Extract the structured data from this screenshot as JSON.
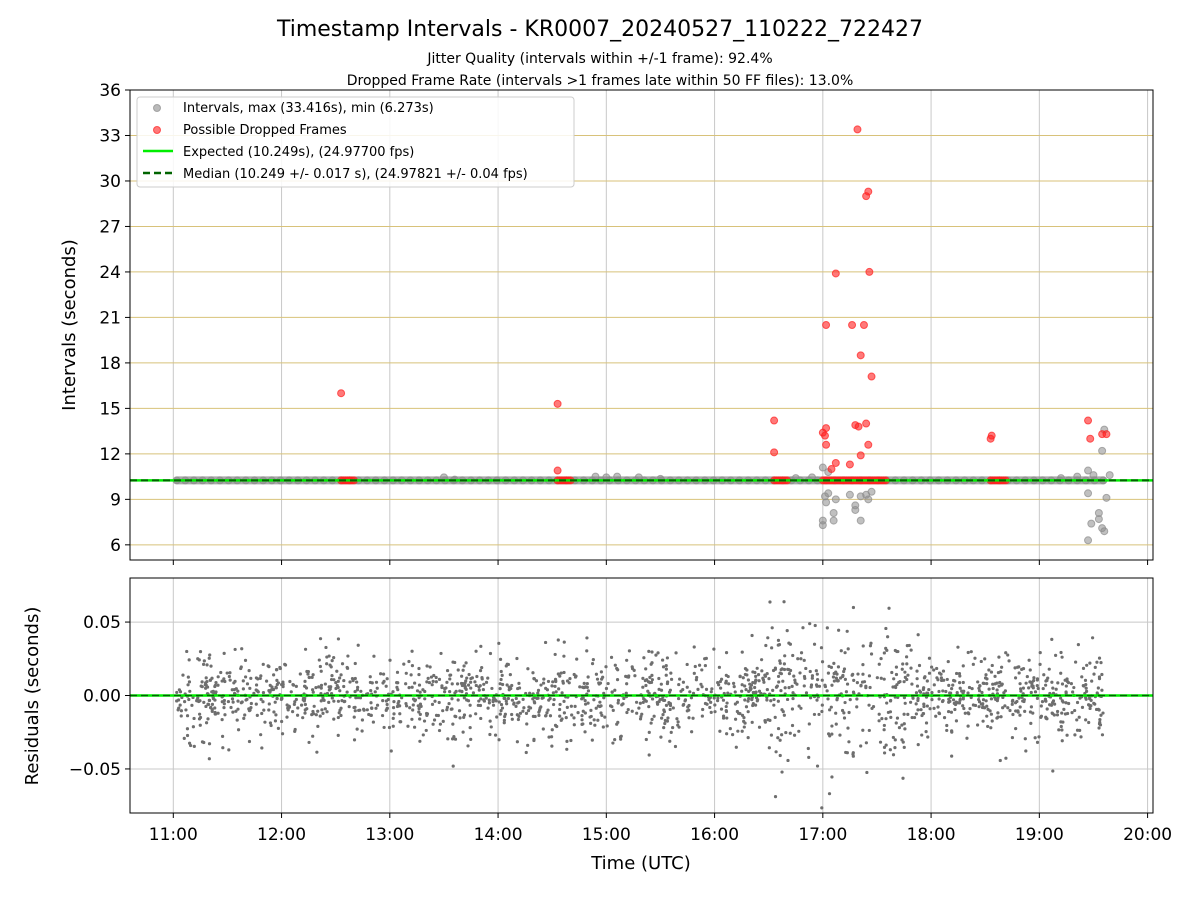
{
  "chart_data": {
    "title": "Timestamp Intervals - KR0007_20240527_110222_722427",
    "subtitle_lines": [
      "Jitter Quality (intervals within +/-1 frame): 92.4%",
      "Dropped Frame Rate (intervals >1 frames late within 50 FF files): 13.0%"
    ],
    "xlabel": "Time (UTC)",
    "x_ticks": [
      "11:00",
      "12:00",
      "13:00",
      "14:00",
      "15:00",
      "16:00",
      "17:00",
      "18:00",
      "19:00",
      "20:00"
    ],
    "x_range_hours": [
      10.6,
      20.05
    ],
    "colors": {
      "intervals": "#8c8c8c",
      "dropped": "#ff2020",
      "expected": "#00ee00",
      "median": "#006400",
      "residuals": "#6e6e6e",
      "hgrid_top": "#d8c27a",
      "grid": "#c8c8c8"
    },
    "panels": [
      {
        "id": "intervals",
        "type": "scatter",
        "ylabel": "Intervals (seconds)",
        "ylim": [
          5,
          36
        ],
        "y_ticks": [
          "6",
          "9",
          "12",
          "15",
          "18",
          "21",
          "24",
          "27",
          "30",
          "33",
          "36"
        ],
        "grid": true,
        "legend_position": "upper-left",
        "legend": [
          {
            "label": "Intervals, max (33.416s), min (6.273s)",
            "kind": "gray-dot"
          },
          {
            "label": "Possible Dropped Frames",
            "kind": "red-dot"
          },
          {
            "label": "Expected (10.249s), (24.97700 fps)",
            "kind": "green-line"
          },
          {
            "label": "Median (10.249 +/- 0.017 s), (24.97821 +/- 0.04 fps)",
            "kind": "dashed-line"
          }
        ],
        "expected_value": 10.249,
        "median_value": 10.249,
        "baseline": {
          "x_start": 11.03,
          "x_end": 19.6,
          "y": 10.249
        },
        "gray_points": [
          [
            13.5,
            10.45
          ],
          [
            13.6,
            10.3
          ],
          [
            14.9,
            10.5
          ],
          [
            15.0,
            10.45
          ],
          [
            15.1,
            10.5
          ],
          [
            15.3,
            10.45
          ],
          [
            15.5,
            10.35
          ],
          [
            16.75,
            10.4
          ],
          [
            16.9,
            10.45
          ],
          [
            17.0,
            11.1
          ],
          [
            17.0,
            7.6
          ],
          [
            17.0,
            7.3
          ],
          [
            17.02,
            9.2
          ],
          [
            17.03,
            8.8
          ],
          [
            17.05,
            9.4
          ],
          [
            17.05,
            10.8
          ],
          [
            17.1,
            8.1
          ],
          [
            17.1,
            7.6
          ],
          [
            17.12,
            9.0
          ],
          [
            17.25,
            9.3
          ],
          [
            17.3,
            8.6
          ],
          [
            17.3,
            8.3
          ],
          [
            17.35,
            9.2
          ],
          [
            17.35,
            7.6
          ],
          [
            17.4,
            9.3
          ],
          [
            17.42,
            9.0
          ],
          [
            17.45,
            9.5
          ],
          [
            19.2,
            10.4
          ],
          [
            19.35,
            10.5
          ],
          [
            19.45,
            10.9
          ],
          [
            19.45,
            9.4
          ],
          [
            19.48,
            7.4
          ],
          [
            19.45,
            6.3
          ],
          [
            19.5,
            10.6
          ],
          [
            19.55,
            8.1
          ],
          [
            19.55,
            7.7
          ],
          [
            19.58,
            7.1
          ],
          [
            19.6,
            6.9
          ],
          [
            19.58,
            12.2
          ],
          [
            19.6,
            13.6
          ],
          [
            19.62,
            9.1
          ],
          [
            19.65,
            10.6
          ]
        ],
        "red_points": [
          [
            12.55,
            16.0
          ],
          [
            14.55,
            15.3
          ],
          [
            14.55,
            10.9
          ],
          [
            16.55,
            14.2
          ],
          [
            16.55,
            12.1
          ],
          [
            17.0,
            13.4
          ],
          [
            17.02,
            13.2
          ],
          [
            17.03,
            13.7
          ],
          [
            17.03,
            12.6
          ],
          [
            17.03,
            20.5
          ],
          [
            17.08,
            11.0
          ],
          [
            17.12,
            11.4
          ],
          [
            17.12,
            23.9
          ],
          [
            17.25,
            11.3
          ],
          [
            17.27,
            20.5
          ],
          [
            17.3,
            13.9
          ],
          [
            17.32,
            33.4
          ],
          [
            17.33,
            13.8
          ],
          [
            17.35,
            18.5
          ],
          [
            17.35,
            11.9
          ],
          [
            17.38,
            20.5
          ],
          [
            17.4,
            29.0
          ],
          [
            17.42,
            29.3
          ],
          [
            17.4,
            14.0
          ],
          [
            17.42,
            12.6
          ],
          [
            17.43,
            24.0
          ],
          [
            17.45,
            17.1
          ],
          [
            18.55,
            13.0
          ],
          [
            18.56,
            13.2
          ],
          [
            19.45,
            14.2
          ],
          [
            19.47,
            13.0
          ],
          [
            19.58,
            13.3
          ],
          [
            19.62,
            13.3
          ]
        ],
        "red_clusters": [
          {
            "x_start": 12.55,
            "x_end": 12.68
          },
          {
            "x_start": 14.55,
            "x_end": 14.68
          },
          {
            "x_start": 16.55,
            "x_end": 16.68
          },
          {
            "x_start": 17.0,
            "x_end": 17.58
          },
          {
            "x_start": 18.55,
            "x_end": 18.7
          }
        ]
      },
      {
        "id": "residuals",
        "type": "scatter",
        "ylabel": "Residuals (seconds)",
        "ylim": [
          -0.08,
          0.08
        ],
        "y_ticks": [
          "0.05",
          "0.00",
          "−0.05"
        ],
        "grid": true,
        "zero_line_value": 0.0,
        "residual_model": {
          "x_start": 11.03,
          "x_end": 19.6,
          "count": 1900,
          "sigma_normal": 0.017,
          "sigma_wide": 0.03,
          "wide_region": [
            16.5,
            17.8
          ],
          "seed": 20240527
        }
      }
    ]
  }
}
